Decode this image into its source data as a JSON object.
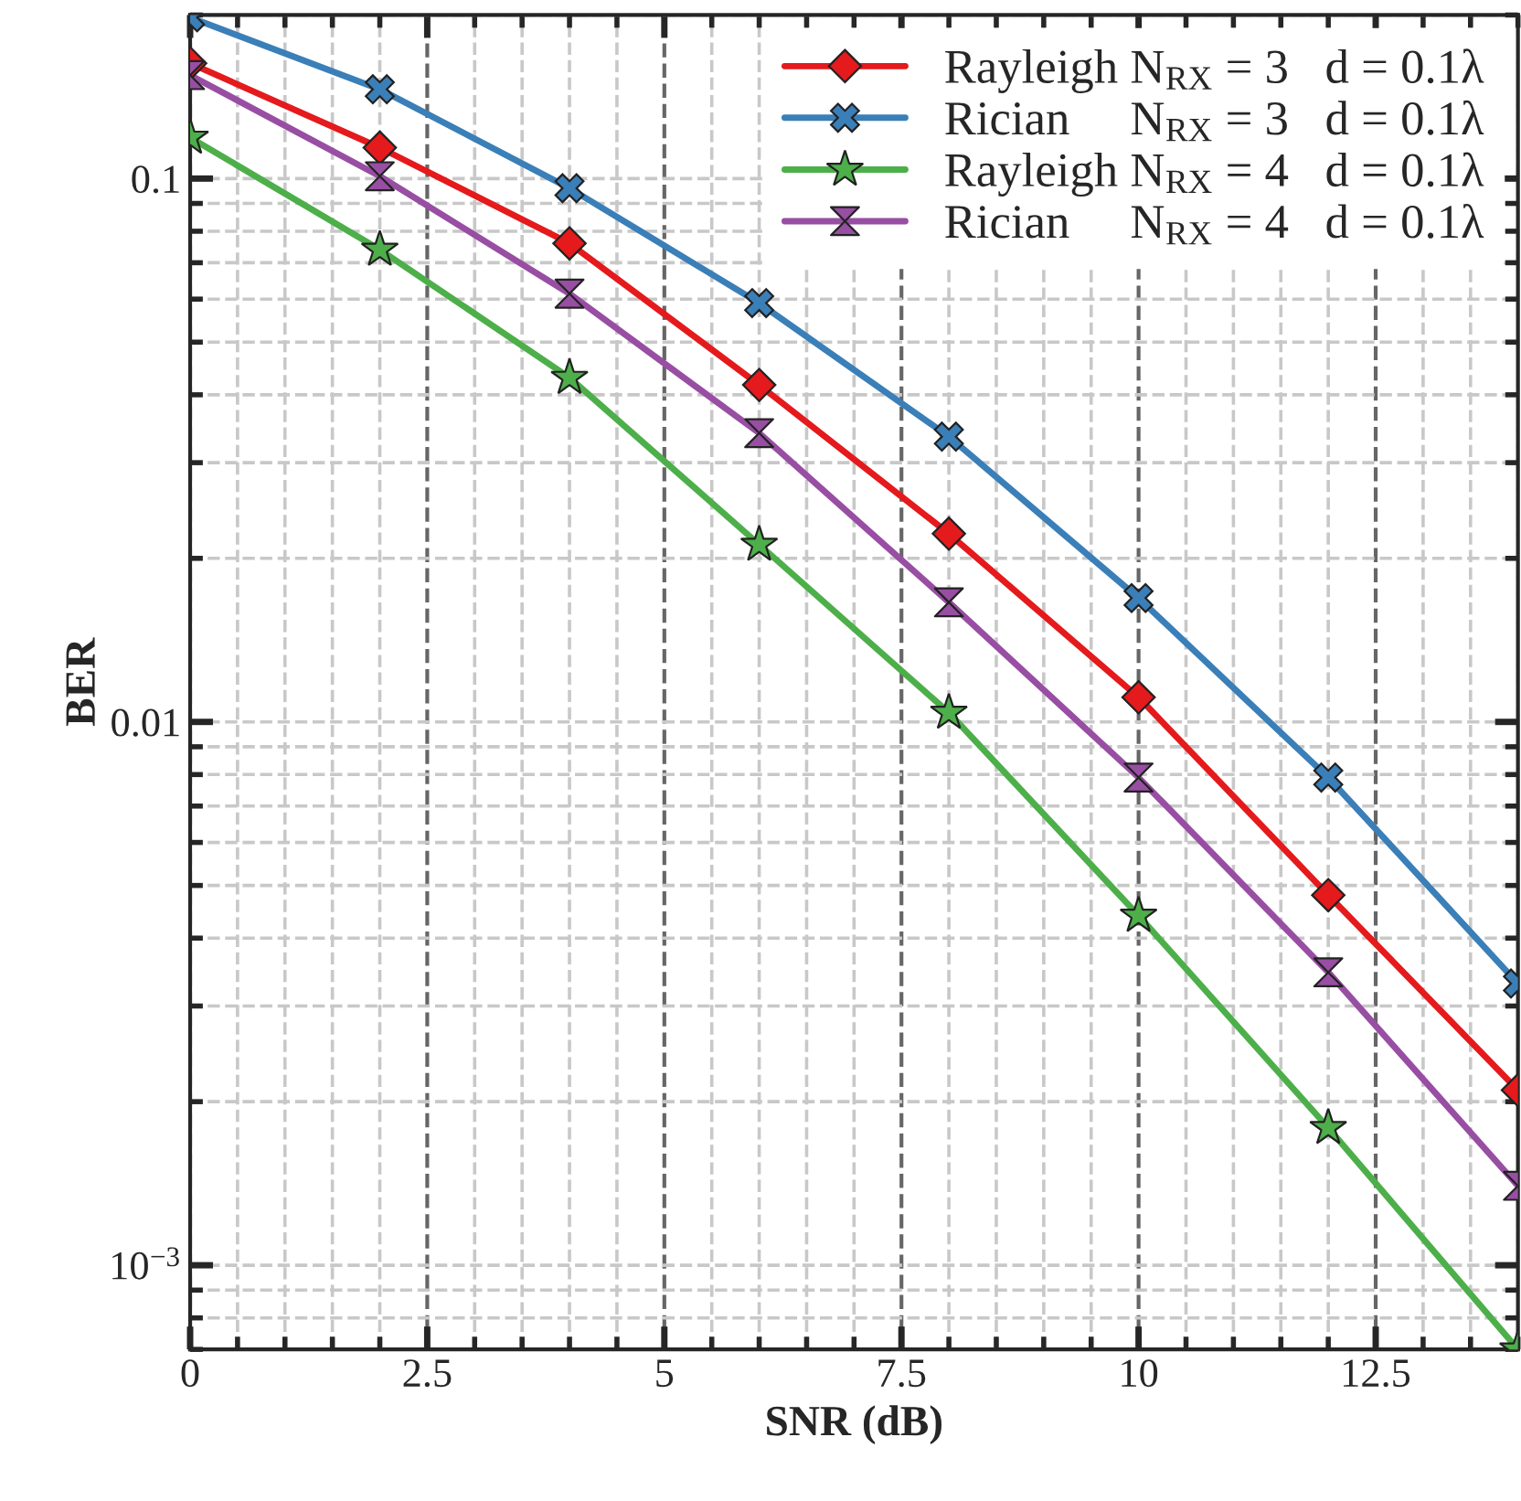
{
  "chart_data": {
    "type": "line",
    "xlabel": "SNR (dB)",
    "ylabel": "BER",
    "log": "y",
    "x": [
      0,
      2,
      4,
      6,
      8,
      10,
      12,
      14
    ],
    "series": [
      {
        "name": "Rayleigh N$_{RX}$ = 3   d = 0.1λ",
        "color": "#e41a1c",
        "marker": "diamond",
        "values": [
          0.163,
          0.114,
          0.076,
          0.0417,
          0.0222,
          0.0111,
          0.0048,
          0.0021
        ]
      },
      {
        "name": "Rician     N$_{RX}$ = 3   d = 0.1λ",
        "color": "#3a7fb8",
        "marker": "cross",
        "values": [
          0.198,
          0.146,
          0.096,
          0.059,
          0.0335,
          0.0169,
          0.0079,
          0.0033
        ]
      },
      {
        "name": "Rayleigh N$_{RX}$ = 4   d = 0.1λ",
        "color": "#4daf4a",
        "marker": "star",
        "values": [
          0.119,
          0.074,
          0.043,
          0.0212,
          0.0104,
          0.0044,
          0.00179,
          0.0007
        ]
      },
      {
        "name": "Rician     N$_{RX}$ = 4   d = 0.1λ",
        "color": "#984ea3",
        "marker": "triangle",
        "values": [
          0.155,
          0.101,
          0.0614,
          0.034,
          0.0166,
          0.0079,
          0.00346,
          0.0014
        ]
      }
    ],
    "xlim": [
      0,
      14
    ],
    "xticks": [
      0,
      2.5,
      5,
      7.5,
      10,
      12.5
    ],
    "ylim": [
      0.0007,
      0.2
    ],
    "yticks": [
      0.1,
      0.01,
      {
        "value": 0.001,
        "label": "10$^{−3}$"
      }
    ],
    "grid": true,
    "legend": "top right",
    "line_style": "solid"
  }
}
